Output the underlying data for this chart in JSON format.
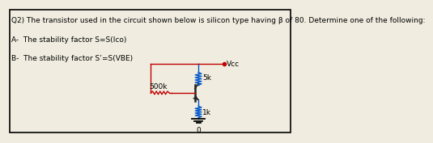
{
  "bg_color": "#f0ede0",
  "border_color": "#000000",
  "text_lines": [
    "Q2) The transistor used in the circuit shown below is silicon type having β of 80. Determine one of the following:",
    "A-  The stability factor S=S(Ico)",
    "B-  The stability factor S’=S(VBE)"
  ],
  "text_fontsize": 6.5,
  "circuit": {
    "vcc_label": "Vcc",
    "r1_label": "5k",
    "r2_label": "500k",
    "re_label": "1k",
    "gnd_label": "0",
    "line_color_red": "#c00000",
    "line_color_blue": "#0055cc",
    "line_color_dark": "#222222"
  }
}
